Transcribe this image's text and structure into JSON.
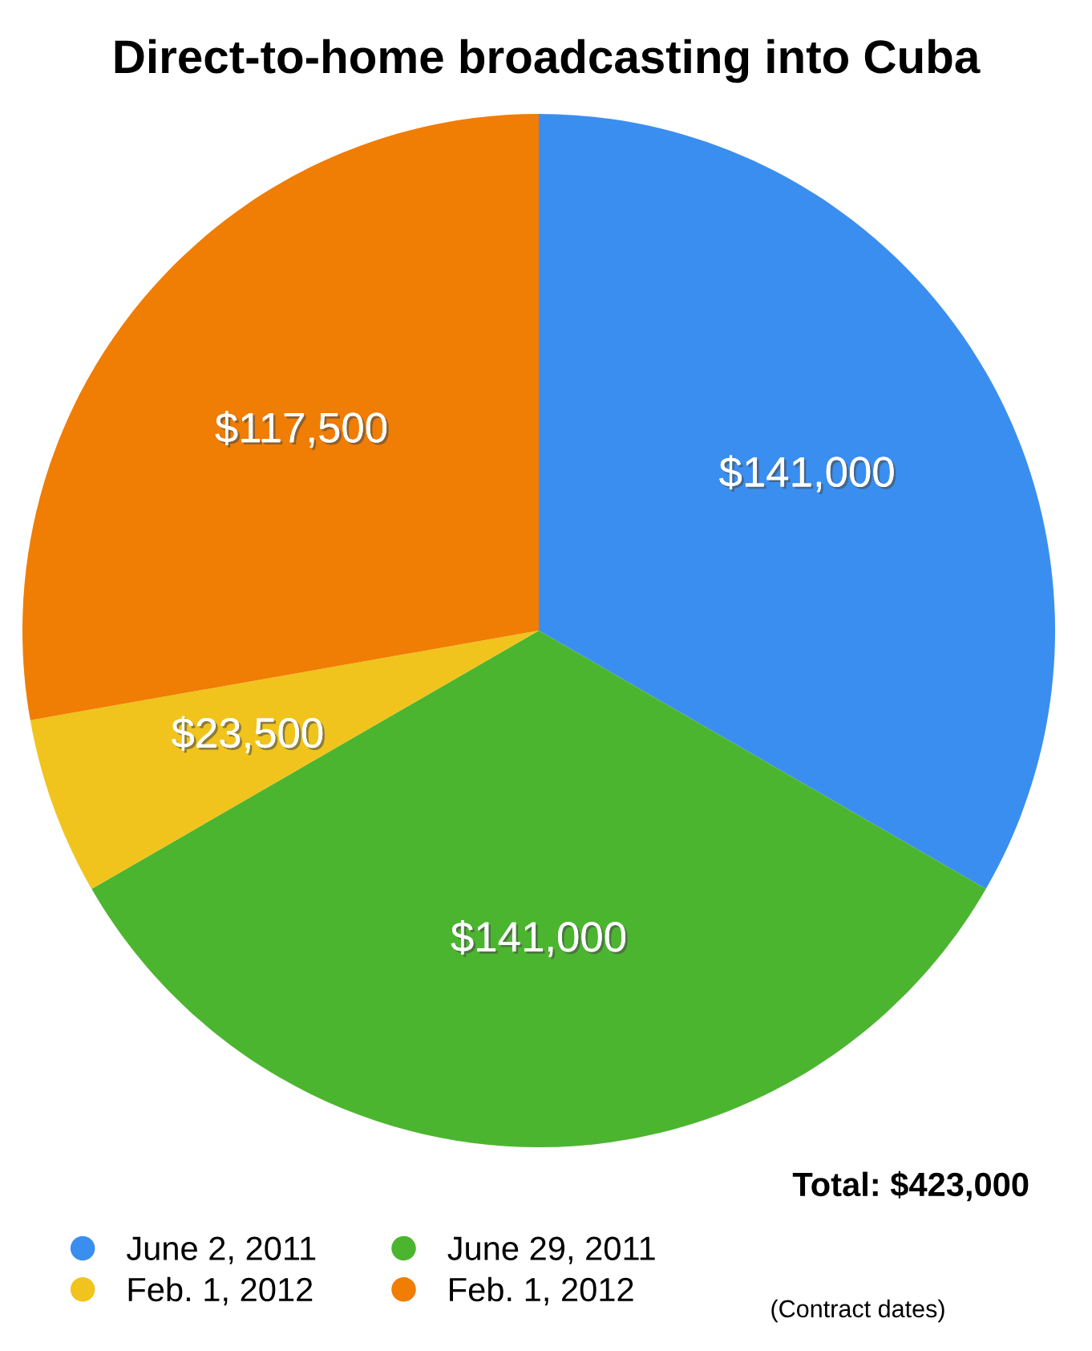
{
  "chart_data": {
    "type": "pie",
    "title": "Direct-to-home broadcasting into Cuba",
    "categories": [
      "June 2, 2011",
      "June 29, 2011",
      "Feb. 1, 2012",
      "Feb. 1, 2012"
    ],
    "values": [
      141000,
      141000,
      23500,
      117500
    ],
    "colors": [
      "#3a8ef0",
      "#4cb530",
      "#f0c41c",
      "#f07d04"
    ],
    "value_labels": [
      "$141,000",
      "$141,000",
      "$23,500",
      "$117,500"
    ],
    "legend": "bottom",
    "annotations": [
      "Total: $423,000",
      "(Contract dates)"
    ]
  }
}
